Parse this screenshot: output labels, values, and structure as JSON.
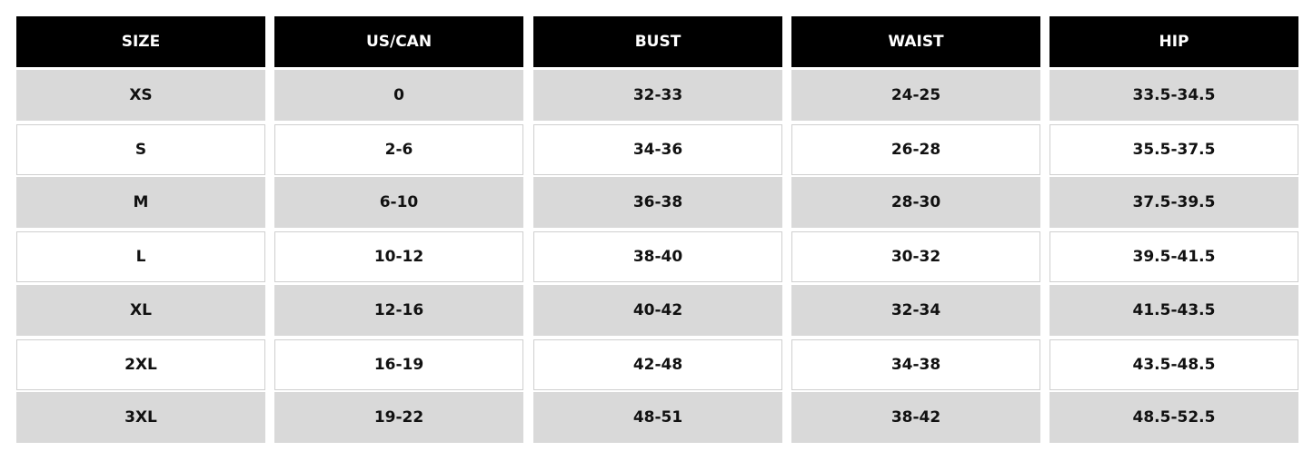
{
  "table": {
    "header": [
      "SIZE",
      "US/CAN",
      "BUST",
      "WAIST",
      "HIP"
    ],
    "rows": [
      [
        "XS",
        "0",
        "32-33",
        "24-25",
        "33.5-34.5"
      ],
      [
        "S",
        "2-6",
        "34-36",
        "26-28",
        "35.5-37.5"
      ],
      [
        "M",
        "6-10",
        "36-38",
        "28-30",
        "37.5-39.5"
      ],
      [
        "L",
        "10-12",
        "38-40",
        "30-32",
        "39.5-41.5"
      ],
      [
        "XL",
        "12-16",
        "40-42",
        "32-34",
        "41.5-43.5"
      ],
      [
        "2XL",
        "16-19",
        "42-48",
        "34-38",
        "43.5-48.5"
      ],
      [
        "3XL",
        "19-22",
        "48-51",
        "38-42",
        "48.5-52.5"
      ]
    ]
  }
}
